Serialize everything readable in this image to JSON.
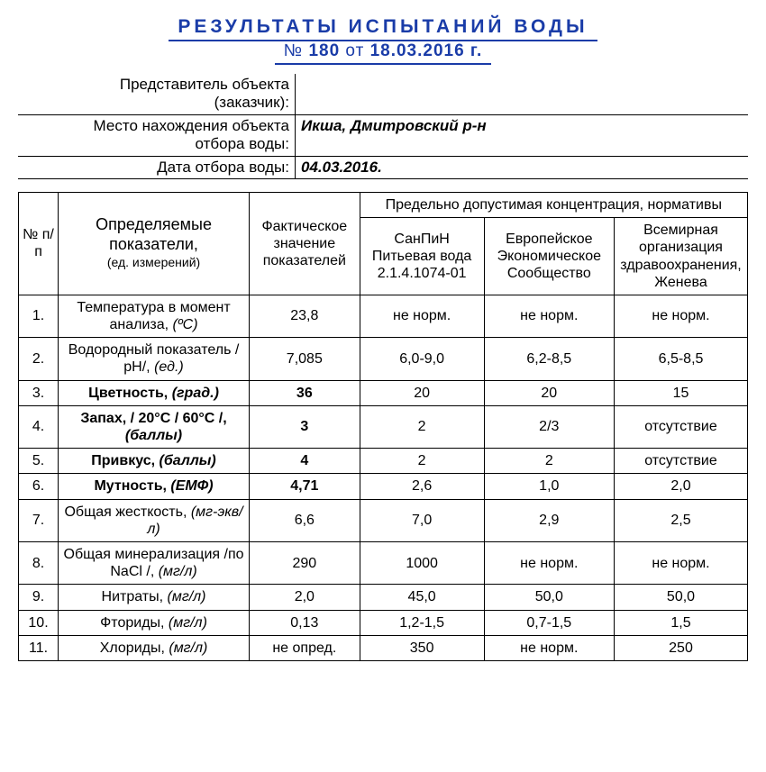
{
  "colors": {
    "title_color": "#1a3ca8",
    "border_color": "#000000",
    "background": "#ffffff",
    "text": "#000000"
  },
  "typography": {
    "main_title_fontsize": 21,
    "main_title_letter_spacing": 4,
    "sub_title_fontsize": 19,
    "meta_fontsize": 17,
    "header_group_fontsize": 17,
    "header_sub_fontsize": 13,
    "row_fontsize": 16
  },
  "title": {
    "main": "РЕЗУЛЬТАТЫ  ИСПЫТАНИЙ  ВОДЫ",
    "sub_prefix": "№ ",
    "sub_number": "180",
    "sub_ot": " от ",
    "sub_date": "18.03.2016 г."
  },
  "meta": {
    "rep_label_l1": "Представитель объекта",
    "rep_label_l2": "(заказчик):",
    "rep_value": "",
    "loc_label_l1": "Место нахождения объекта",
    "loc_label_l2": "отбора воды:",
    "loc_value": "Икша, Дмитровский р-н",
    "date_label": "Дата отбора воды:",
    "date_value": "04.03.2016."
  },
  "headers": {
    "num": "№ п/п",
    "param_main": "Определяемые показатели,",
    "param_sub": "(ед. измерений)",
    "fact": "Фактическое значение показателей",
    "norm_group": "Предельно допустимая концентрация, нормативы",
    "norm1": "СанПиН Питьевая вода 2.1.4.1074-01",
    "norm2": "Европейское Экономическое Сообщество",
    "norm3": "Всемирная организация здравоохранения, Женева"
  },
  "rows": [
    {
      "n": "1.",
      "param": "Температура в момент анализа, ",
      "unit": "(ºС)",
      "bold": false,
      "fact": "23,8",
      "fbold": false,
      "v1": "не норм.",
      "v2": "не норм.",
      "v3": "не норм."
    },
    {
      "n": "2.",
      "param": "Водородный показатель /рН/, ",
      "unit": "(ед.)",
      "bold": false,
      "fact": "7,085",
      "fbold": false,
      "v1": "6,0-9,0",
      "v2": "6,2-8,5",
      "v3": "6,5-8,5"
    },
    {
      "n": "3.",
      "param": "Цветность, ",
      "unit": "(град.)",
      "bold": true,
      "fact": "36",
      "fbold": true,
      "v1": "20",
      "v2": "20",
      "v3": "15"
    },
    {
      "n": "4.",
      "param": "Запах, / 20°С / 60°С /, ",
      "unit": "(баллы)",
      "bold": true,
      "fact": "3",
      "fbold": true,
      "v1": "2",
      "v2": "2/3",
      "v3": "отсутствие"
    },
    {
      "n": "5.",
      "param": "Привкус, ",
      "unit": "(баллы)",
      "bold": true,
      "fact": "4",
      "fbold": true,
      "v1": "2",
      "v2": "2",
      "v3": "отсутствие"
    },
    {
      "n": "6.",
      "param": "Мутность, ",
      "unit": "(ЕМФ)",
      "bold": true,
      "fact": "4,71",
      "fbold": true,
      "v1": "2,6",
      "v2": "1,0",
      "v3": "2,0"
    },
    {
      "n": "7.",
      "param": "Общая жесткость, ",
      "unit": "(мг-экв/л)",
      "bold": false,
      "fact": "6,6",
      "fbold": false,
      "v1": "7,0",
      "v2": "2,9",
      "v3": "2,5"
    },
    {
      "n": "8.",
      "param": "Общая минерализация /по NaCl /, ",
      "unit": "(мг/л)",
      "bold": false,
      "fact": "290",
      "fbold": false,
      "v1": "1000",
      "v2": "не норм.",
      "v3": "не норм."
    },
    {
      "n": "9.",
      "param": "Нитраты, ",
      "unit": "(мг/л)",
      "bold": false,
      "fact": "2,0",
      "fbold": false,
      "v1": "45,0",
      "v2": "50,0",
      "v3": "50,0"
    },
    {
      "n": "10.",
      "param": "Фториды, ",
      "unit": "(мг/л)",
      "bold": false,
      "fact": "0,13",
      "fbold": false,
      "v1": "1,2-1,5",
      "v2": "0,7-1,5",
      "v3": "1,5"
    },
    {
      "n": "11.",
      "param": "Хлориды, ",
      "unit": "(мг/л)",
      "bold": false,
      "fact": "не опред.",
      "fbold": false,
      "v1": "350",
      "v2": "не норм.",
      "v3": "250"
    }
  ]
}
